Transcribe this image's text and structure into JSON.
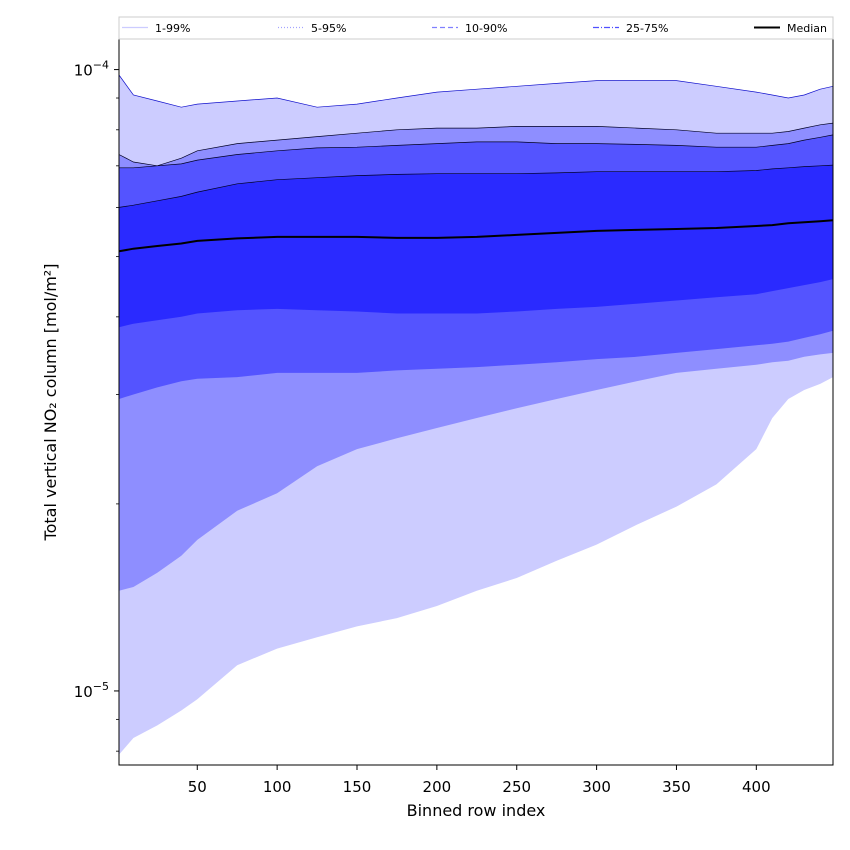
{
  "chart_data": {
    "type": "area",
    "xlabel": "Binned row index",
    "ylabel": "Total vertical NO₂ column [mol/m²]",
    "xlim": [
      1,
      448
    ],
    "ylim": [
      7.6e-06,
      0.000112
    ],
    "yscale": "log",
    "grid": false,
    "legend_position": "top",
    "x_ticks": [
      {
        "value": 50,
        "label": "50"
      },
      {
        "value": 100,
        "label": "100"
      },
      {
        "value": 150,
        "label": "150"
      },
      {
        "value": 200,
        "label": "200"
      },
      {
        "value": 250,
        "label": "250"
      },
      {
        "value": 300,
        "label": "300"
      },
      {
        "value": 350,
        "label": "350"
      },
      {
        "value": 400,
        "label": "400"
      }
    ],
    "y_major_ticks": [
      {
        "value": 1e-05,
        "base": "10",
        "exp": "−5"
      },
      {
        "value": 0.0001,
        "base": "10",
        "exp": "−4"
      }
    ],
    "legend": [
      {
        "label": "1-99%",
        "color": "#ccccff",
        "style": "solid"
      },
      {
        "label": "5-95%",
        "color": "#a3a3ff",
        "style": "dotted"
      },
      {
        "label": "10-90%",
        "color": "#8080ff",
        "style": "dashed"
      },
      {
        "label": "25-75%",
        "color": "#5050ff",
        "style": "dashdot"
      },
      {
        "label": "Median",
        "color": "#000000",
        "style": "solid"
      }
    ],
    "x": [
      1,
      10,
      25,
      40,
      50,
      75,
      100,
      125,
      150,
      175,
      200,
      225,
      250,
      275,
      300,
      325,
      350,
      375,
      400,
      410,
      420,
      430,
      440,
      448
    ],
    "bands": [
      {
        "name": "1-99%",
        "color": "#ccccff",
        "lower": [
          7.9e-06,
          8.4e-06,
          8.8e-06,
          9.3e-06,
          9.7e-06,
          1.1e-05,
          1.17e-05,
          1.22e-05,
          1.27e-05,
          1.31e-05,
          1.37e-05,
          1.45e-05,
          1.52e-05,
          1.62e-05,
          1.72e-05,
          1.85e-05,
          1.98e-05,
          2.15e-05,
          2.45e-05,
          2.75e-05,
          2.95e-05,
          3.05e-05,
          3.12e-05,
          3.2e-05
        ],
        "upper": [
          9.8e-05,
          9.1e-05,
          8.9e-05,
          8.7e-05,
          8.8e-05,
          8.9e-05,
          9e-05,
          8.7e-05,
          8.8e-05,
          9e-05,
          9.2e-05,
          9.3e-05,
          9.4e-05,
          9.5e-05,
          9.6e-05,
          9.6e-05,
          9.6e-05,
          9.4e-05,
          9.2e-05,
          9.1e-05,
          9e-05,
          9.1e-05,
          9.3e-05,
          9.4e-05
        ]
      },
      {
        "name": "5-95%",
        "color": "#8e8eff",
        "lower": [
          1.45e-05,
          1.47e-05,
          1.55e-05,
          1.65e-05,
          1.75e-05,
          1.95e-05,
          2.08e-05,
          2.3e-05,
          2.45e-05,
          2.55e-05,
          2.65e-05,
          2.75e-05,
          2.85e-05,
          2.95e-05,
          3.05e-05,
          3.15e-05,
          3.25e-05,
          3.3e-05,
          3.35e-05,
          3.38e-05,
          3.4e-05,
          3.45e-05,
          3.48e-05,
          3.5e-05
        ],
        "upper": [
          7.3e-05,
          7.1e-05,
          7e-05,
          7.2e-05,
          7.4e-05,
          7.6e-05,
          7.7e-05,
          7.8e-05,
          7.9e-05,
          8e-05,
          8.05e-05,
          8.05e-05,
          8.1e-05,
          8.1e-05,
          8.1e-05,
          8.05e-05,
          8e-05,
          7.9e-05,
          7.9e-05,
          7.9e-05,
          7.95e-05,
          8.05e-05,
          8.15e-05,
          8.2e-05
        ]
      },
      {
        "name": "10-90%",
        "color": "#5454ff",
        "lower": [
          2.95e-05,
          3e-05,
          3.08e-05,
          3.15e-05,
          3.18e-05,
          3.2e-05,
          3.25e-05,
          3.25e-05,
          3.25e-05,
          3.28e-05,
          3.3e-05,
          3.32e-05,
          3.35e-05,
          3.38e-05,
          3.42e-05,
          3.45e-05,
          3.5e-05,
          3.55e-05,
          3.6e-05,
          3.62e-05,
          3.65e-05,
          3.7e-05,
          3.75e-05,
          3.8e-05
        ],
        "upper": [
          6.95e-05,
          6.95e-05,
          7e-05,
          7.05e-05,
          7.15e-05,
          7.3e-05,
          7.4e-05,
          7.48e-05,
          7.5e-05,
          7.55e-05,
          7.6e-05,
          7.65e-05,
          7.65e-05,
          7.6e-05,
          7.6e-05,
          7.58e-05,
          7.55e-05,
          7.5e-05,
          7.5e-05,
          7.55e-05,
          7.6e-05,
          7.7e-05,
          7.78e-05,
          7.85e-05
        ]
      },
      {
        "name": "25-75%",
        "color": "#2a2aff",
        "lower": [
          3.85e-05,
          3.9e-05,
          3.95e-05,
          4e-05,
          4.05e-05,
          4.1e-05,
          4.12e-05,
          4.1e-05,
          4.08e-05,
          4.05e-05,
          4.05e-05,
          4.05e-05,
          4.08e-05,
          4.12e-05,
          4.15e-05,
          4.2e-05,
          4.25e-05,
          4.3e-05,
          4.35e-05,
          4.4e-05,
          4.45e-05,
          4.5e-05,
          4.55e-05,
          4.6e-05
        ],
        "upper": [
          6e-05,
          6.05e-05,
          6.15e-05,
          6.25e-05,
          6.35e-05,
          6.55e-05,
          6.65e-05,
          6.7e-05,
          6.75e-05,
          6.78e-05,
          6.8e-05,
          6.8e-05,
          6.8e-05,
          6.82e-05,
          6.85e-05,
          6.85e-05,
          6.85e-05,
          6.85e-05,
          6.88e-05,
          6.92e-05,
          6.95e-05,
          6.98e-05,
          7e-05,
          7.02e-05
        ]
      }
    ],
    "median": {
      "name": "Median",
      "color": "#000000",
      "values": [
        5.1e-05,
        5.15e-05,
        5.2e-05,
        5.25e-05,
        5.3e-05,
        5.35e-05,
        5.38e-05,
        5.38e-05,
        5.38e-05,
        5.36e-05,
        5.36e-05,
        5.38e-05,
        5.42e-05,
        5.46e-05,
        5.5e-05,
        5.52e-05,
        5.54e-05,
        5.56e-05,
        5.6e-05,
        5.62e-05,
        5.66e-05,
        5.68e-05,
        5.7e-05,
        5.72e-05
      ]
    }
  }
}
